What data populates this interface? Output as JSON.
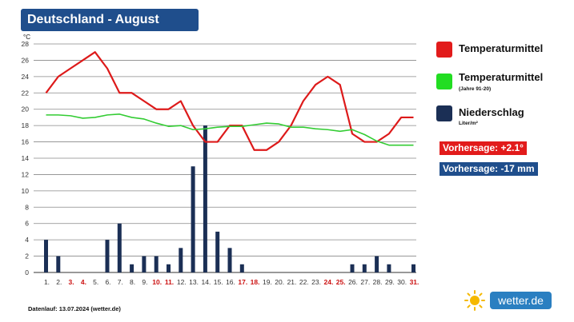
{
  "header": {
    "title": "Deutschland - August"
  },
  "legend": {
    "items": [
      {
        "label": "Temperaturmittel",
        "sub": "",
        "color": "#e21b1b"
      },
      {
        "label": "Temperaturmittel",
        "sub": "(Jahre 91-20)",
        "color": "#22dd22"
      },
      {
        "label": "Niederschlag",
        "sub": "Liter/m²",
        "color": "#1b2f55"
      }
    ]
  },
  "badges": {
    "temp": {
      "text": "Vorhersage: +2.1°",
      "color": "#e21b1b"
    },
    "rain": {
      "text": "Vorhersage: -17 mm",
      "color": "#1f4e8c"
    }
  },
  "footer": {
    "text": "Datenlauf: 13.07.2024 (wetter.de)"
  },
  "brand": {
    "text": "wetter.de"
  },
  "chart_data": {
    "type": "bar",
    "ylabel": "°C",
    "ylim": [
      0,
      28
    ],
    "yticks": [
      0,
      2,
      4,
      6,
      8,
      10,
      12,
      14,
      16,
      18,
      20,
      22,
      24,
      26,
      28
    ],
    "grid": true,
    "categories": [
      "1.",
      "2.",
      "3.",
      "4.",
      "5.",
      "6.",
      "7.",
      "8.",
      "9.",
      "10.",
      "11.",
      "12.",
      "13.",
      "14.",
      "15.",
      "16.",
      "17.",
      "18.",
      "19.",
      "20.",
      "21.",
      "22.",
      "23.",
      "24.",
      "25.",
      "26.",
      "27.",
      "28.",
      "29.",
      "30.",
      "31."
    ],
    "weekend_days": [
      3,
      4,
      10,
      11,
      17,
      18,
      24,
      25,
      31
    ],
    "weekend_color": "#cc1111",
    "series": [
      {
        "name": "Temperaturmittel",
        "kind": "line",
        "color": "#dd1a1a",
        "values": [
          22,
          24,
          25,
          26,
          27,
          25,
          22,
          22,
          21,
          20,
          20,
          21,
          18,
          16,
          16,
          18,
          18,
          15,
          15,
          16,
          18,
          21,
          23,
          24,
          23,
          17,
          16,
          16,
          17,
          19,
          19
        ]
      },
      {
        "name": "Temperaturmittel (Jahre 91-20)",
        "kind": "line",
        "color": "#33cc33",
        "values": [
          19.3,
          19.3,
          19.2,
          18.9,
          19.0,
          19.3,
          19.4,
          19.0,
          18.8,
          18.3,
          17.9,
          18.0,
          17.5,
          17.6,
          17.8,
          17.9,
          17.9,
          18.1,
          18.3,
          18.2,
          17.8,
          17.8,
          17.6,
          17.5,
          17.3,
          17.5,
          16.9,
          16.1,
          15.6,
          15.6,
          15.6
        ]
      },
      {
        "name": "Niederschlag",
        "kind": "bar",
        "color": "#1b2f55",
        "values": [
          4,
          2,
          0,
          0,
          0,
          4,
          6,
          1,
          2,
          2,
          1,
          3,
          13,
          18,
          5,
          3,
          1,
          0,
          0,
          0,
          0,
          0,
          0,
          0,
          0,
          1,
          1,
          2,
          1,
          0,
          1
        ]
      }
    ]
  }
}
